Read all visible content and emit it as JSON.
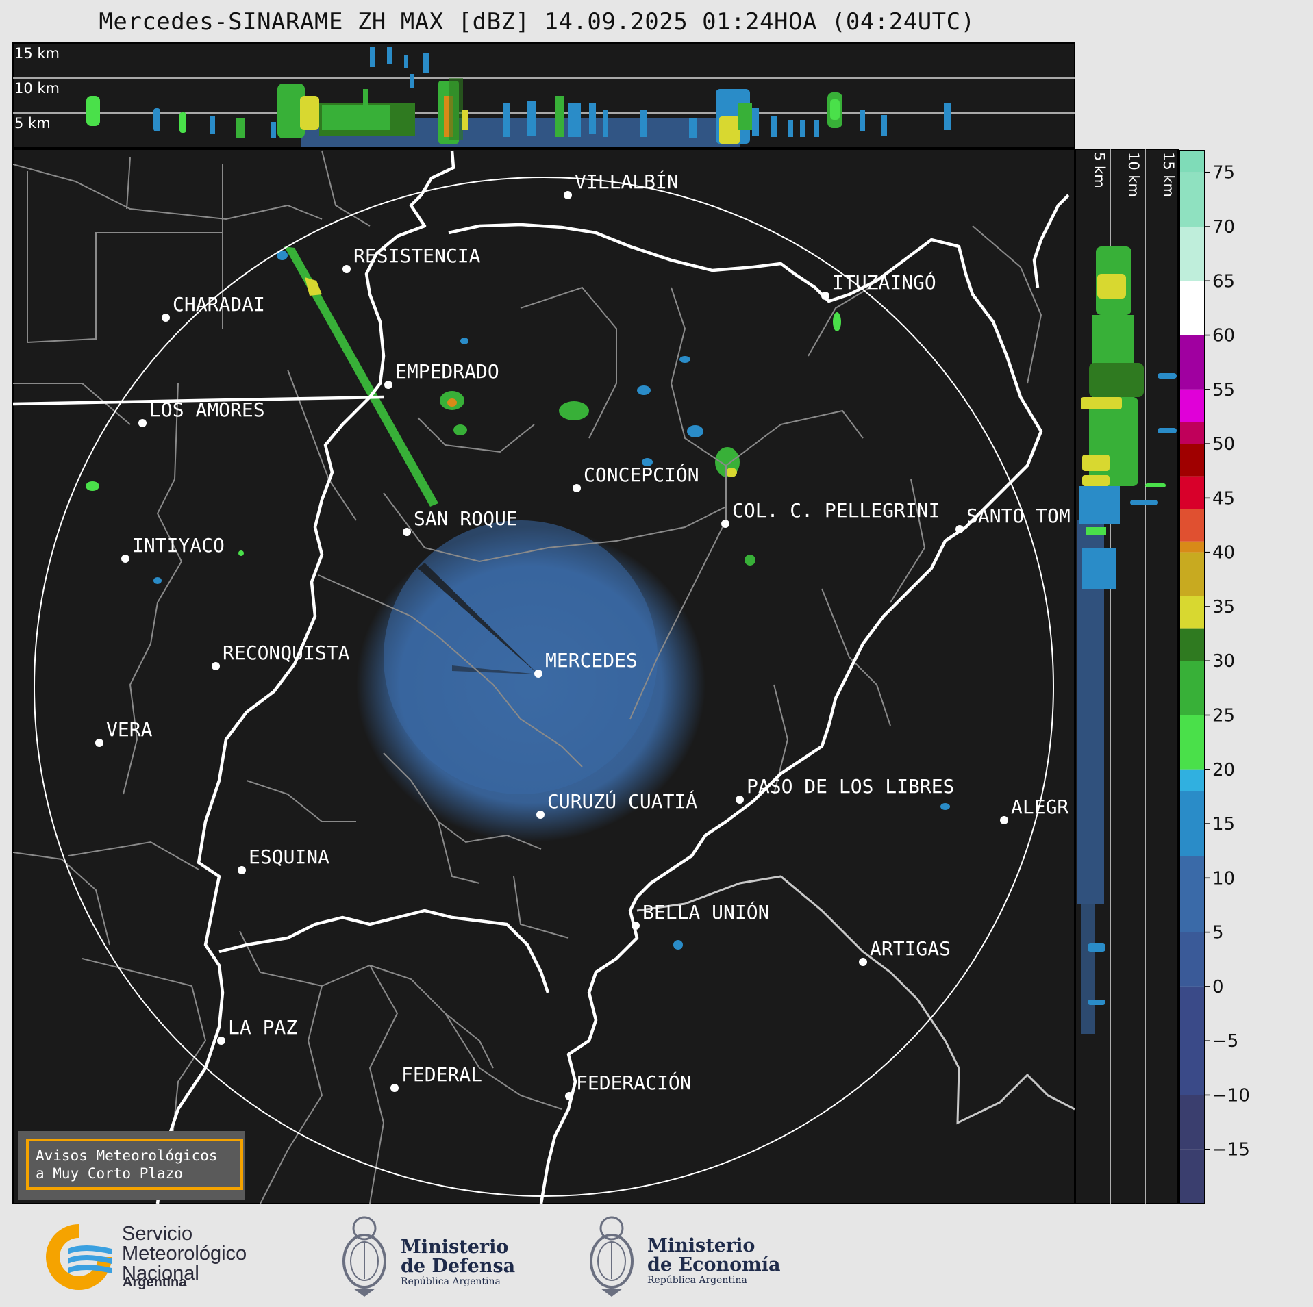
{
  "title": "Mercedes-SINARAME ZH MAX [dBZ] 14.09.2025 01:24HOA (04:24UTC)",
  "height_labels_top": [
    "15 km",
    "10 km",
    "5 km"
  ],
  "height_labels_right": [
    "5 km",
    "10 km",
    "15 km"
  ],
  "cities": [
    {
      "name": "VILLALBÍN"
    },
    {
      "name": "RESISTENCIA"
    },
    {
      "name": "CHARADAI"
    },
    {
      "name": "ITUZAINGÓ"
    },
    {
      "name": "EMPEDRADO"
    },
    {
      "name": "LOS AMORES"
    },
    {
      "name": "CONCEPCIÓN"
    },
    {
      "name": "SAN ROQUE"
    },
    {
      "name": "COL. C. PELLEGRINI"
    },
    {
      "name": "SANTO TOM"
    },
    {
      "name": "INTIYACO"
    },
    {
      "name": "MERCEDES"
    },
    {
      "name": "RECONQUISTA"
    },
    {
      "name": "VERA"
    },
    {
      "name": "PASO DE LOS LIBRES"
    },
    {
      "name": "CURUZÚ CUATIÁ"
    },
    {
      "name": "ALEGR"
    },
    {
      "name": "ESQUINA"
    },
    {
      "name": "BELLA UNIÓN"
    },
    {
      "name": "ARTIGAS"
    },
    {
      "name": "LA PAZ"
    },
    {
      "name": "FEDERAL"
    },
    {
      "name": "FEDERACIÓN"
    }
  ],
  "colorbar": {
    "ticks": [
      "75",
      "70",
      "65",
      "60",
      "55",
      "50",
      "45",
      "40",
      "35",
      "30",
      "25",
      "20",
      "15",
      "10",
      "5",
      "0",
      "−5",
      "−10",
      "−15"
    ],
    "stops": [
      {
        "value": 75,
        "color": "#7fdcb8"
      },
      {
        "value": 70,
        "color": "#8fe1c0"
      },
      {
        "value": 65,
        "color": "#bfeedb"
      },
      {
        "value": 60,
        "color": "#ffffff"
      },
      {
        "value": 55,
        "color": "#a000a0"
      },
      {
        "value": 52,
        "color": "#e000d8"
      },
      {
        "value": 50,
        "color": "#c0005a"
      },
      {
        "value": 47,
        "color": "#a00000"
      },
      {
        "value": 44,
        "color": "#d8002a"
      },
      {
        "value": 41,
        "color": "#e05030"
      },
      {
        "value": 40,
        "color": "#d88a18"
      },
      {
        "value": 36,
        "color": "#c8aa20"
      },
      {
        "value": 33,
        "color": "#d8d830"
      },
      {
        "value": 30,
        "color": "#2f7a20"
      },
      {
        "value": 25,
        "color": "#38b038"
      },
      {
        "value": 20,
        "color": "#4ae04a"
      },
      {
        "value": 18,
        "color": "#30b0e0"
      },
      {
        "value": 12,
        "color": "#2a8cc8"
      },
      {
        "value": 5,
        "color": "#3a6aa8"
      },
      {
        "value": 0,
        "color": "#3a5a98"
      },
      {
        "value": -10,
        "color": "#3a4a88"
      },
      {
        "value": -15,
        "color": "#3a3e6e"
      }
    ]
  },
  "warning_box": {
    "line1": "Avisos Meteorológicos",
    "line2": "a Muy Corto Plazo"
  },
  "logos": {
    "smn": {
      "line1": "Servicio",
      "line2": "Meteorológico",
      "line3": "Nacional",
      "sub": "Argentina"
    },
    "defensa": {
      "line1": "Ministerio",
      "line2": "de Defensa",
      "sub": "República Argentina"
    },
    "economia": {
      "line1": "Ministerio",
      "line2": "de Economía",
      "sub": "República Argentina"
    }
  }
}
